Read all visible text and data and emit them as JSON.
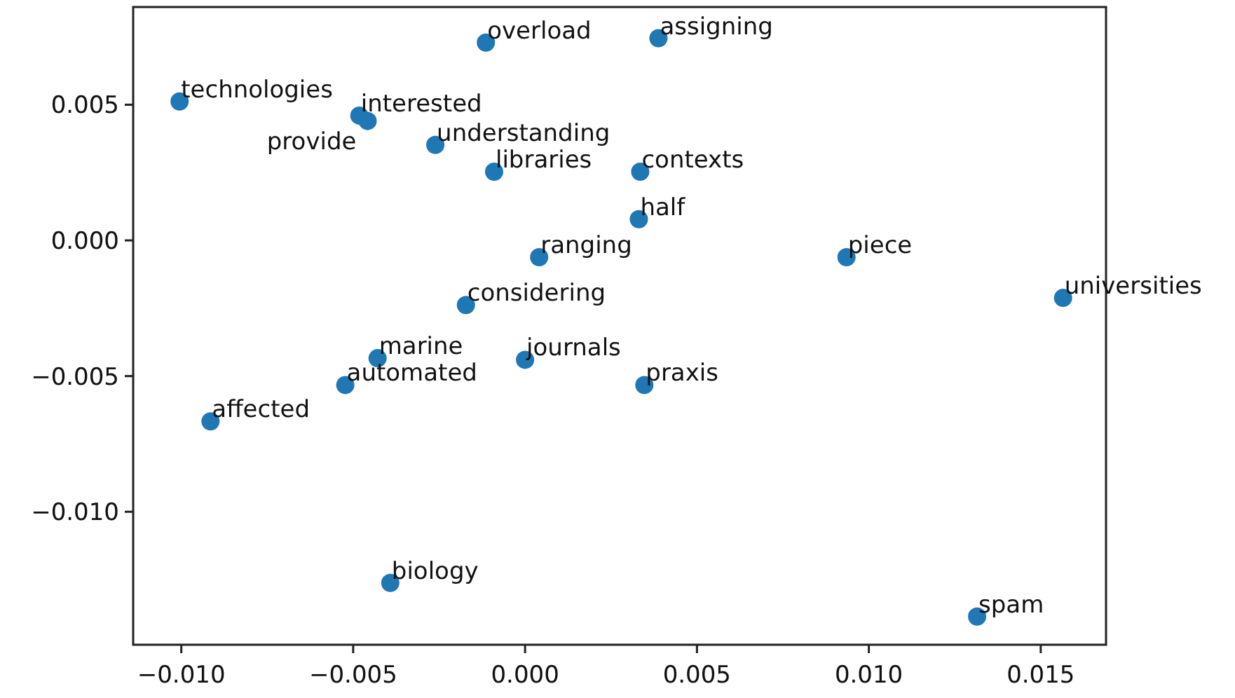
{
  "chart_data": {
    "type": "scatter",
    "marker": "circle",
    "xlim": [
      -0.0114,
      0.0169
    ],
    "ylim": [
      -0.0149,
      0.0086
    ],
    "xticks": [
      {
        "value": -0.01,
        "label": "−0.010"
      },
      {
        "value": -0.005,
        "label": "−0.005"
      },
      {
        "value": 0,
        "label": "0.000"
      },
      {
        "value": 0.005,
        "label": "0.005"
      },
      {
        "value": 0.01,
        "label": "0.010"
      },
      {
        "value": 0.015,
        "label": "0.015"
      }
    ],
    "yticks": [
      {
        "value": -0.01,
        "label": "−0.010"
      },
      {
        "value": -0.005,
        "label": "−0.005"
      },
      {
        "value": 0,
        "label": "0.000"
      },
      {
        "value": 0.005,
        "label": "0.005"
      }
    ],
    "series": [
      {
        "color": "#1f77b4",
        "x": [
          -0.01005,
          -0.00482,
          -0.00458,
          -0.00114,
          0.00388,
          -0.00261,
          -0.0009,
          0.00335,
          0.00331,
          0.00041,
          0.00935,
          0.01565,
          -0.00172,
          -0.00429,
          0.0,
          -0.00523,
          0.00347,
          -0.00915,
          -0.00392,
          0.01315
        ],
        "values": [
          0.00512,
          0.0046,
          0.0044,
          0.00729,
          0.00745,
          0.00352,
          0.00253,
          0.00253,
          0.00078,
          -0.00062,
          -0.00062,
          -0.00212,
          -0.00238,
          -0.00434,
          -0.0044,
          -0.00533,
          -0.00533,
          -0.00667,
          -0.01262,
          -0.01386
        ]
      }
    ],
    "annotations": [
      {
        "text": "technologies",
        "x": -0.01005,
        "y": 0.00512
      },
      {
        "text": "interested",
        "x": -0.00482,
        "y": 0.0046
      },
      {
        "text": "provide",
        "x": -0.00458,
        "y": 0.0044
      },
      {
        "text": "overload",
        "x": -0.00114,
        "y": 0.00729
      },
      {
        "text": "assigning",
        "x": 0.00388,
        "y": 0.00745
      },
      {
        "text": "understanding",
        "x": -0.00261,
        "y": 0.00352
      },
      {
        "text": "libraries",
        "x": -0.0009,
        "y": 0.00253
      },
      {
        "text": "contexts",
        "x": 0.00335,
        "y": 0.00253
      },
      {
        "text": "half",
        "x": 0.00331,
        "y": 0.00078
      },
      {
        "text": "ranging",
        "x": 0.00041,
        "y": -0.00062
      },
      {
        "text": "piece",
        "x": 0.00935,
        "y": -0.00062
      },
      {
        "text": "universities",
        "x": 0.01565,
        "y": -0.00212
      },
      {
        "text": "considering",
        "x": -0.00172,
        "y": -0.00238
      },
      {
        "text": "marine",
        "x": -0.00429,
        "y": -0.00434
      },
      {
        "text": "journals",
        "x": 0.0,
        "y": -0.0044
      },
      {
        "text": "automated",
        "x": -0.00523,
        "y": -0.00533
      },
      {
        "text": "praxis",
        "x": 0.00347,
        "y": -0.00533
      },
      {
        "text": "affected",
        "x": -0.00915,
        "y": -0.00667
      },
      {
        "text": "biology",
        "x": -0.00392,
        "y": -0.01262
      },
      {
        "text": "spam",
        "x": 0.01315,
        "y": -0.01386
      }
    ]
  }
}
